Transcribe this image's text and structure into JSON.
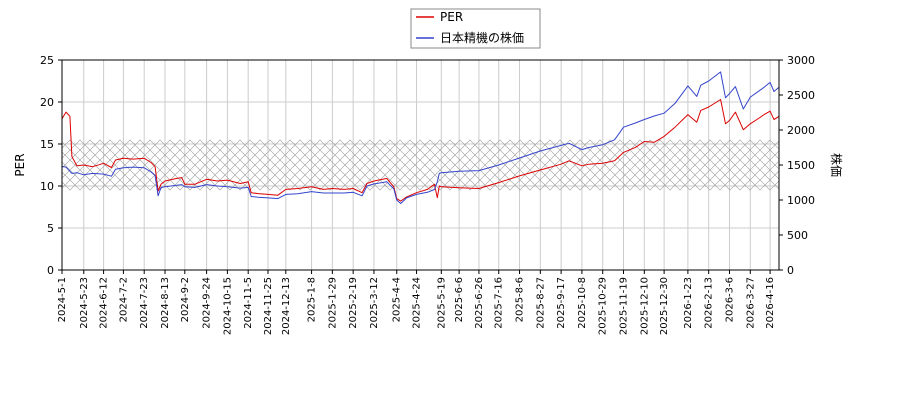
{
  "chart_data": {
    "type": "line",
    "y_left_label": "PER",
    "y_right_label": "株価",
    "y_left_lim": [
      0,
      25
    ],
    "y_right_lim": [
      0,
      3000
    ],
    "y_left_ticks": [
      0,
      5,
      10,
      15,
      20,
      25
    ],
    "y_right_ticks": [
      0,
      500,
      1000,
      1500,
      2000,
      2500,
      3000
    ],
    "grid": true,
    "legend_position": "top-center",
    "shaded_band": {
      "y_left_from": 9.5,
      "y_left_to": 15.5,
      "pattern": "cross-hatch"
    },
    "x_tick_labels": [
      "2024-5-1",
      "2024-5-23",
      "2024-6-12",
      "2024-7-2",
      "2024-7-23",
      "2024-8-13",
      "2024-9-2",
      "2024-9-24",
      "2024-10-15",
      "2024-11-5",
      "2024-11-25",
      "2024-12-13",
      "2025-1-8",
      "2025-1-29",
      "2025-2-19",
      "2025-3-12",
      "2025-4-4",
      "2025-4-24",
      "2025-5-19",
      "2025-6-6",
      "2025-6-26",
      "2025-7-16",
      "2025-8-6",
      "2025-8-27",
      "2025-9-17",
      "2025-10-8",
      "2025-10-29",
      "2025-11-19",
      "2025-12-10",
      "2025-12-30",
      "2026-1-23",
      "2026-2-13",
      "2026-3-6",
      "2026-3-27",
      "2026-4-16"
    ],
    "series": [
      {
        "name": "PER",
        "axis": "left",
        "color": "#dd0000",
        "points": [
          [
            "2024-5-1",
            18.0
          ],
          [
            "2024-5-5",
            18.8
          ],
          [
            "2024-5-9",
            18.3
          ],
          [
            "2024-5-11",
            13.5
          ],
          [
            "2024-5-16",
            12.4
          ],
          [
            "2024-5-23",
            12.5
          ],
          [
            "2024-6-1",
            12.3
          ],
          [
            "2024-6-12",
            12.7
          ],
          [
            "2024-6-20",
            12.2
          ],
          [
            "2024-6-24",
            13.1
          ],
          [
            "2024-7-2",
            13.3
          ],
          [
            "2024-7-12",
            13.2
          ],
          [
            "2024-7-23",
            13.3
          ],
          [
            "2024-7-30",
            12.8
          ],
          [
            "2024-8-3",
            12.3
          ],
          [
            "2024-8-6",
            9.4
          ],
          [
            "2024-8-9",
            10.2
          ],
          [
            "2024-8-13",
            10.6
          ],
          [
            "2024-8-25",
            10.9
          ],
          [
            "2024-8-30",
            11.0
          ],
          [
            "2024-9-2",
            10.2
          ],
          [
            "2024-9-12",
            10.2
          ],
          [
            "2024-9-24",
            10.8
          ],
          [
            "2024-10-5",
            10.6
          ],
          [
            "2024-10-15",
            10.7
          ],
          [
            "2024-10-28",
            10.3
          ],
          [
            "2024-11-5",
            10.5
          ],
          [
            "2024-11-8",
            9.2
          ],
          [
            "2024-11-15",
            9.1
          ],
          [
            "2024-11-25",
            9.0
          ],
          [
            "2024-12-5",
            8.9
          ],
          [
            "2024-12-13",
            9.6
          ],
          [
            "2024-12-25",
            9.7
          ],
          [
            "2025-1-8",
            9.9
          ],
          [
            "2025-1-20",
            9.6
          ],
          [
            "2025-1-29",
            9.7
          ],
          [
            "2025-2-10",
            9.6
          ],
          [
            "2025-2-19",
            9.7
          ],
          [
            "2025-2-28",
            9.2
          ],
          [
            "2025-3-5",
            10.3
          ],
          [
            "2025-3-12",
            10.6
          ],
          [
            "2025-3-25",
            10.9
          ],
          [
            "2025-4-1",
            9.9
          ],
          [
            "2025-4-4",
            8.5
          ],
          [
            "2025-4-8",
            8.2
          ],
          [
            "2025-4-14",
            8.7
          ],
          [
            "2025-4-24",
            9.2
          ],
          [
            "2025-5-5",
            9.6
          ],
          [
            "2025-5-12",
            10.2
          ],
          [
            "2025-5-15",
            8.6
          ],
          [
            "2025-5-17",
            10.0
          ],
          [
            "2025-5-19",
            9.9
          ],
          [
            "2025-6-6",
            9.8
          ],
          [
            "2025-6-26",
            9.7
          ],
          [
            "2025-7-16",
            10.4
          ],
          [
            "2025-8-6",
            11.2
          ],
          [
            "2025-8-27",
            11.9
          ],
          [
            "2025-9-17",
            12.6
          ],
          [
            "2025-9-25",
            13.0
          ],
          [
            "2025-10-8",
            12.4
          ],
          [
            "2025-10-15",
            12.6
          ],
          [
            "2025-10-29",
            12.7
          ],
          [
            "2025-11-10",
            13.0
          ],
          [
            "2025-11-19",
            14.0
          ],
          [
            "2025-12-1",
            14.6
          ],
          [
            "2025-12-10",
            15.3
          ],
          [
            "2025-12-20",
            15.2
          ],
          [
            "2025-12-30",
            15.9
          ],
          [
            "2026-1-10",
            17.0
          ],
          [
            "2026-1-23",
            18.5
          ],
          [
            "2026-2-1",
            17.6
          ],
          [
            "2026-2-5",
            19.0
          ],
          [
            "2026-2-13",
            19.4
          ],
          [
            "2026-2-25",
            20.3
          ],
          [
            "2026-3-2",
            17.4
          ],
          [
            "2026-3-6",
            17.8
          ],
          [
            "2026-3-12",
            18.8
          ],
          [
            "2026-3-20",
            16.7
          ],
          [
            "2026-3-27",
            17.4
          ],
          [
            "2026-4-5",
            18.1
          ],
          [
            "2026-4-10",
            18.5
          ],
          [
            "2026-4-16",
            18.9
          ],
          [
            "2026-4-20",
            17.9
          ],
          [
            "2026-4-25",
            18.3
          ]
        ]
      },
      {
        "name": "日本精機の株価",
        "axis": "right",
        "color": "#3344cc",
        "points": [
          [
            "2024-5-1",
            1480
          ],
          [
            "2024-5-5",
            1470
          ],
          [
            "2024-5-9",
            1410
          ],
          [
            "2024-5-11",
            1380
          ],
          [
            "2024-5-16",
            1390
          ],
          [
            "2024-5-23",
            1360
          ],
          [
            "2024-6-1",
            1380
          ],
          [
            "2024-6-12",
            1370
          ],
          [
            "2024-6-20",
            1340
          ],
          [
            "2024-6-24",
            1440
          ],
          [
            "2024-7-2",
            1460
          ],
          [
            "2024-7-12",
            1470
          ],
          [
            "2024-7-23",
            1460
          ],
          [
            "2024-7-30",
            1400
          ],
          [
            "2024-8-3",
            1350
          ],
          [
            "2024-8-6",
            1060
          ],
          [
            "2024-8-9",
            1180
          ],
          [
            "2024-8-13",
            1190
          ],
          [
            "2024-8-25",
            1210
          ],
          [
            "2024-8-30",
            1220
          ],
          [
            "2024-9-2",
            1190
          ],
          [
            "2024-9-12",
            1180
          ],
          [
            "2024-9-24",
            1220
          ],
          [
            "2024-10-5",
            1200
          ],
          [
            "2024-10-15",
            1190
          ],
          [
            "2024-10-28",
            1170
          ],
          [
            "2024-11-5",
            1180
          ],
          [
            "2024-11-8",
            1050
          ],
          [
            "2024-11-15",
            1040
          ],
          [
            "2024-11-25",
            1030
          ],
          [
            "2024-12-5",
            1020
          ],
          [
            "2024-12-13",
            1080
          ],
          [
            "2024-12-25",
            1090
          ],
          [
            "2025-1-8",
            1120
          ],
          [
            "2025-1-20",
            1100
          ],
          [
            "2025-1-29",
            1100
          ],
          [
            "2025-2-10",
            1100
          ],
          [
            "2025-2-19",
            1110
          ],
          [
            "2025-2-28",
            1060
          ],
          [
            "2025-3-5",
            1200
          ],
          [
            "2025-3-12",
            1230
          ],
          [
            "2025-3-25",
            1260
          ],
          [
            "2025-4-1",
            1160
          ],
          [
            "2025-4-4",
            1000
          ],
          [
            "2025-4-8",
            950
          ],
          [
            "2025-4-14",
            1030
          ],
          [
            "2025-4-24",
            1080
          ],
          [
            "2025-5-5",
            1110
          ],
          [
            "2025-5-12",
            1150
          ],
          [
            "2025-5-15",
            1260
          ],
          [
            "2025-5-17",
            1380
          ],
          [
            "2025-5-19",
            1390
          ],
          [
            "2025-6-6",
            1410
          ],
          [
            "2025-6-26",
            1420
          ],
          [
            "2025-7-16",
            1500
          ],
          [
            "2025-8-6",
            1600
          ],
          [
            "2025-8-27",
            1700
          ],
          [
            "2025-9-17",
            1780
          ],
          [
            "2025-9-25",
            1810
          ],
          [
            "2025-10-8",
            1720
          ],
          [
            "2025-10-15",
            1750
          ],
          [
            "2025-10-29",
            1790
          ],
          [
            "2025-11-10",
            1860
          ],
          [
            "2025-11-19",
            2040
          ],
          [
            "2025-12-1",
            2100
          ],
          [
            "2025-12-10",
            2150
          ],
          [
            "2025-12-20",
            2200
          ],
          [
            "2025-12-30",
            2240
          ],
          [
            "2026-1-10",
            2380
          ],
          [
            "2026-1-23",
            2630
          ],
          [
            "2026-2-1",
            2480
          ],
          [
            "2026-2-5",
            2640
          ],
          [
            "2026-2-13",
            2700
          ],
          [
            "2026-2-25",
            2830
          ],
          [
            "2026-3-2",
            2460
          ],
          [
            "2026-3-6",
            2520
          ],
          [
            "2026-3-12",
            2620
          ],
          [
            "2026-3-20",
            2300
          ],
          [
            "2026-3-27",
            2470
          ],
          [
            "2026-4-5",
            2560
          ],
          [
            "2026-4-10",
            2610
          ],
          [
            "2026-4-16",
            2680
          ],
          [
            "2026-4-20",
            2550
          ],
          [
            "2026-4-25",
            2610
          ]
        ]
      }
    ]
  }
}
